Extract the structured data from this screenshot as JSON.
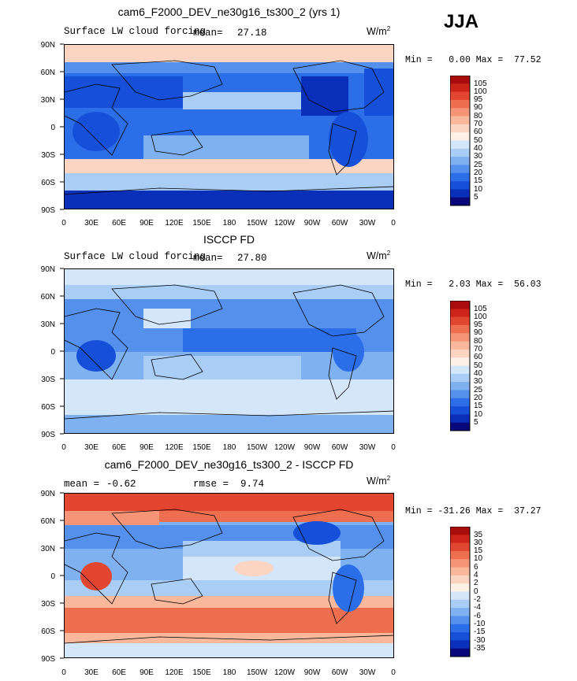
{
  "season": "JJA",
  "colors": {
    "abs_palette": [
      "#08087a",
      "#0a2fb8",
      "#1650d8",
      "#2b6ee8",
      "#5590ec",
      "#7fb0f0",
      "#a9cdf5",
      "#d3e6fa",
      "#fdf0e6",
      "#fcd5c2",
      "#f9b79c",
      "#f59476",
      "#ee6e50",
      "#e34630",
      "#cc2418",
      "#a80c0c"
    ],
    "diff_palette": [
      "#08087a",
      "#0a2fb8",
      "#1650d8",
      "#2b6ee8",
      "#5590ec",
      "#7fb0f0",
      "#a9cdf5",
      "#d3e6fa",
      "#fdf0e6",
      "#fcd5c2",
      "#f9b79c",
      "#f59476",
      "#ee6e50",
      "#e34630",
      "#cc2418",
      "#a80c0c"
    ]
  },
  "axes": {
    "x_ticks": [
      "0",
      "30E",
      "60E",
      "90E",
      "120E",
      "150E",
      "180",
      "150W",
      "120W",
      "90W",
      "60W",
      "30W",
      "0"
    ],
    "y_ticks": [
      "90N",
      "60N",
      "30N",
      "0",
      "30S",
      "60S",
      "90S"
    ]
  },
  "chart_data": [
    {
      "type": "heatmap",
      "title": "cam6_F2000_DEV_ne30g16_ts300_2 (yrs 1)",
      "subtitle": "Surface LW cloud forcing",
      "mean_label": "mean=",
      "mean": "27.18",
      "units": "W/m",
      "units_exp": "2",
      "min_label": "Min =",
      "min": "0.00",
      "max_label": "Max =",
      "max": "77.52",
      "xlim": [
        0,
        360
      ],
      "ylim": [
        -90,
        90
      ],
      "levels": [
        "105",
        "100",
        "95",
        "90",
        "80",
        "70",
        "60",
        "50",
        "40",
        "30",
        "25",
        "20",
        "15",
        "10",
        "5"
      ]
    },
    {
      "type": "heatmap",
      "title": "ISCCP FD",
      "subtitle": "Surface LW cloud forcing",
      "mean_label": "mean=",
      "mean": "27.80",
      "units": "W/m",
      "units_exp": "2",
      "min_label": "Min =",
      "min": "2.03",
      "max_label": "Max =",
      "max": "56.03",
      "xlim": [
        0,
        360
      ],
      "ylim": [
        -90,
        90
      ],
      "levels": [
        "105",
        "100",
        "95",
        "90",
        "80",
        "70",
        "60",
        "50",
        "40",
        "30",
        "25",
        "20",
        "15",
        "10",
        "5"
      ]
    },
    {
      "type": "heatmap",
      "title": "cam6_F2000_DEV_ne30g16_ts300_2 - ISCCP FD",
      "mean_label": "mean =",
      "mean": "-0.62",
      "rmse_label": "rmse =",
      "rmse": "9.74",
      "units": "W/m",
      "units_exp": "2",
      "min_label": "Min =",
      "min": "-31.26",
      "max_label": "Max =",
      "max": "37.27",
      "xlim": [
        0,
        360
      ],
      "ylim": [
        -90,
        90
      ],
      "levels": [
        "35",
        "30",
        "15",
        "10",
        "6",
        "4",
        "2",
        "0",
        "-2",
        "-4",
        "-6",
        "-10",
        "-15",
        "-30",
        "-35"
      ]
    }
  ]
}
